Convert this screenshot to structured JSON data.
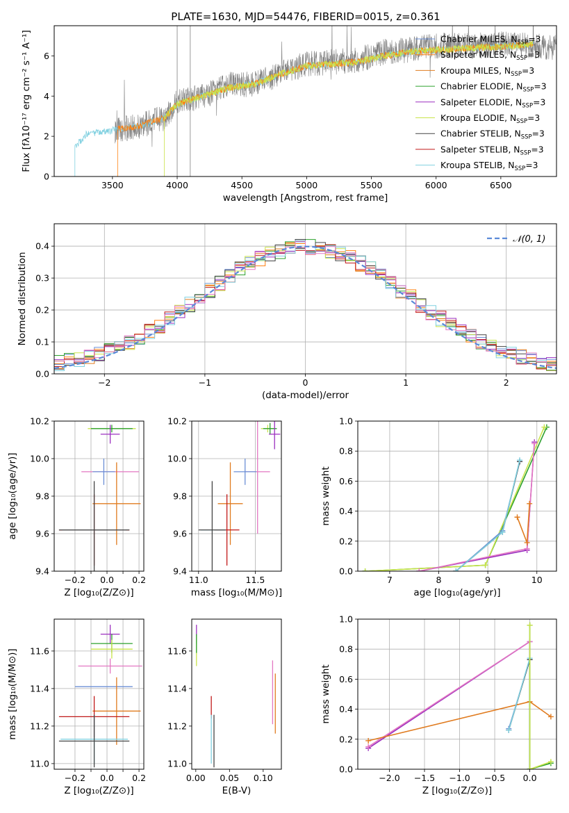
{
  "figure_title": "PLATE=1630, MJD=54476, FIBERID=0015, z=0.361",
  "colors": {
    "Chabrier MILES": "#6b8fd6",
    "Salpeter MILES": "#ff7f0e",
    "Kroupa MILES": "#e07b1f",
    "Chabrier ELODIE": "#2ca02c",
    "Salpeter ELODIE": "#9b2fbf",
    "Kroupa ELODIE": "#c9e34a",
    "Chabrier STELIB": "#444444",
    "Salpeter STELIB": "#c01818",
    "Kroupa STELIB": "#80d0e0",
    "pink": "#e377c2",
    "gray": "#7f7f7f"
  },
  "chart_data": [
    {
      "type": "line",
      "panel": "spectrum",
      "title": "PLATE=1630, MJD=54476, FIBERID=0015, z=0.361",
      "xlabel": "wavelength [Angstrom, rest frame]",
      "ylabel": "Flux [fλ10⁻¹⁷ erg cm⁻² s⁻¹ A⁻¹]",
      "xlim": [
        3050,
        6930
      ],
      "ylim": [
        0,
        7.5
      ],
      "xticks": [
        3500,
        4000,
        4500,
        5000,
        5500,
        6000,
        6500
      ],
      "yticks": [
        0,
        2,
        4,
        6
      ],
      "legend_position": "right",
      "legend": [
        {
          "label": "Chabrier MILES, N",
          "sub": "SSP",
          "tail": "=3",
          "color": "#6b8fd6"
        },
        {
          "label": "Salpeter MILES, N",
          "sub": "SSP",
          "tail": "=3",
          "color": "#ff7f0e"
        },
        {
          "label": "Kroupa MILES, N",
          "sub": "SSP",
          "tail": "=3",
          "color": "#e07b1f"
        },
        {
          "label": "Chabrier ELODIE, N",
          "sub": "SSP",
          "tail": "=3",
          "color": "#2ca02c"
        },
        {
          "label": "Salpeter ELODIE, N",
          "sub": "SSP",
          "tail": "=3",
          "color": "#9b2fbf"
        },
        {
          "label": "Kroupa ELODIE, N",
          "sub": "SSP",
          "tail": "=3",
          "color": "#c9e34a"
        },
        {
          "label": "Chabrier STELIB, N",
          "sub": "SSP",
          "tail": "=3",
          "color": "#444444"
        },
        {
          "label": "Salpeter STELIB, N",
          "sub": "SSP",
          "tail": "=3",
          "color": "#c01818"
        },
        {
          "label": "Kroupa STELIB, N",
          "sub": "SSP",
          "tail": "=3",
          "color": "#80d0e0"
        }
      ],
      "data_curve": {
        "color": "#7f7f7f",
        "start": 3520,
        "end": 6930,
        "knots": [
          [
            3520,
            2.3
          ],
          [
            3700,
            2.5
          ],
          [
            3900,
            2.9
          ],
          [
            4000,
            3.7
          ],
          [
            4200,
            4.0
          ],
          [
            4400,
            4.6
          ],
          [
            4600,
            4.6
          ],
          [
            4800,
            5.1
          ],
          [
            5000,
            5.6
          ],
          [
            5200,
            5.7
          ],
          [
            5400,
            5.8
          ],
          [
            5600,
            6.2
          ],
          [
            5800,
            6.3
          ],
          [
            6000,
            6.5
          ],
          [
            6300,
            6.5
          ],
          [
            6600,
            6.6
          ],
          [
            6930,
            6.4
          ]
        ]
      },
      "model_curve": {
        "knots": [
          [
            3220,
            1.55
          ],
          [
            3300,
            2.1
          ],
          [
            3400,
            2.2
          ],
          [
            3500,
            2.3
          ],
          [
            3700,
            2.5
          ],
          [
            3900,
            2.9
          ],
          [
            4000,
            3.6
          ],
          [
            4200,
            4.0
          ],
          [
            4400,
            4.4
          ],
          [
            4600,
            4.6
          ],
          [
            4800,
            5.1
          ],
          [
            5000,
            5.5
          ],
          [
            5200,
            5.6
          ],
          [
            5400,
            5.7
          ],
          [
            5600,
            6.0
          ],
          [
            5800,
            6.2
          ],
          [
            6000,
            6.3
          ],
          [
            6300,
            6.4
          ],
          [
            6600,
            6.5
          ],
          [
            6750,
            6.6
          ]
        ],
        "series": [
          {
            "name": "Kroupa STELIB",
            "start": 3210,
            "end": 6750,
            "color": "#80d0e0"
          },
          {
            "name": "Salpeter MILES",
            "start": 3540,
            "end": 6750,
            "color": "#ff7f0e"
          },
          {
            "name": "Kroupa ELODIE",
            "start": 3900,
            "end": 6750,
            "color": "#c9e34a"
          }
        ]
      }
    },
    {
      "type": "line",
      "panel": "residuals",
      "xlabel": "(data-model)/error",
      "ylabel": "Normed distribution",
      "xlim": [
        -2.5,
        2.5
      ],
      "ylim": [
        0,
        0.47
      ],
      "xticks": [
        -2,
        -1,
        0,
        1,
        2
      ],
      "yticks": [
        0.0,
        0.1,
        0.2,
        0.3,
        0.4
      ],
      "grid": true,
      "legend_position": "top-right",
      "legend": [
        {
          "label": "𝒩(0, 1)",
          "color": "#5b8ad8",
          "dashed": true
        }
      ],
      "bin_edges_step": 0.1,
      "series_colors": [
        "#6b8fd6",
        "#ff7f0e",
        "#e07b1f",
        "#2ca02c",
        "#9b2fbf",
        "#c9e34a",
        "#444444",
        "#c01818",
        "#80d0e0",
        "#e377c2"
      ]
    },
    {
      "type": "scatter",
      "panel": "age-vs-Z",
      "xlabel": "Z [log₁₀(Z/Z⊙)]",
      "ylabel": "age  [log₁₀(age/yr)]",
      "xlim": [
        -0.33,
        0.23
      ],
      "ylim": [
        9.4,
        10.2
      ],
      "xticks": [
        -0.2,
        -0.1,
        0.0,
        0.1,
        0.2
      ],
      "xticklabels": [
        "−0.2",
        "",
        "0.0",
        "",
        "0.2"
      ],
      "yticks": [
        9.4,
        9.6,
        9.8,
        10.0,
        10.2
      ],
      "grid": true,
      "points": [
        {
          "x": 0.03,
          "y": 10.16,
          "xerr": 0.15,
          "yerr": 0.0,
          "color": "#c9e34a"
        },
        {
          "x": 0.03,
          "y": 10.16,
          "xerr": 0.13,
          "yerr": 0.02,
          "color": "#2ca02c"
        },
        {
          "x": 0.02,
          "y": 10.13,
          "xerr": 0.06,
          "yerr": 0.05,
          "color": "#9b2fbf"
        },
        {
          "x": 0.02,
          "y": 9.93,
          "xerr": 0.18,
          "yerr": 0.0,
          "color": "#e377c2"
        },
        {
          "x": -0.02,
          "y": 9.93,
          "xerr": 0.07,
          "yerr": 0.07,
          "color": "#6b8fd6"
        },
        {
          "x": 0.06,
          "y": 9.76,
          "xerr": 0.15,
          "yerr": 0.22,
          "color": "#e07b1f"
        },
        {
          "x": -0.08,
          "y": 9.62,
          "xerr": 0.22,
          "yerr": 0.19,
          "color": "#c01818"
        },
        {
          "x": -0.08,
          "y": 9.62,
          "xerr": 0.2,
          "yerr": 0.0,
          "color": "#80d0e0"
        },
        {
          "x": -0.08,
          "y": 9.62,
          "xerr": 0.22,
          "yerr": 0.26,
          "color": "#444444"
        }
      ]
    },
    {
      "type": "scatter",
      "panel": "age-vs-mass",
      "xlabel": "mass [log₁₀(M/M⊙)]",
      "ylabel": "",
      "xlim": [
        10.94,
        11.73
      ],
      "ylim": [
        9.4,
        10.2
      ],
      "xticks": [
        11.0,
        11.5
      ],
      "yticks": [
        9.4,
        9.6,
        9.8,
        10.0,
        10.2
      ],
      "grid": true,
      "points": [
        {
          "x": 11.61,
          "y": 10.16,
          "xerr": 0.06,
          "yerr": 0.02,
          "color": "#c9e34a"
        },
        {
          "x": 11.63,
          "y": 10.16,
          "xerr": 0.06,
          "yerr": 0.03,
          "color": "#2ca02c"
        },
        {
          "x": 11.67,
          "y": 10.13,
          "xerr": 0.05,
          "yerr": 0.08,
          "color": "#9b2fbf"
        },
        {
          "x": 11.52,
          "y": 9.93,
          "xerr": 0.11,
          "yerr": 0.33,
          "color": "#e377c2"
        },
        {
          "x": 11.41,
          "y": 9.93,
          "xerr": 0.1,
          "yerr": 0.07,
          "color": "#6b8fd6"
        },
        {
          "x": 11.28,
          "y": 9.76,
          "xerr": 0.11,
          "yerr": 0.22,
          "color": "#e07b1f"
        },
        {
          "x": 11.25,
          "y": 9.62,
          "xerr": 0.11,
          "yerr": 0.19,
          "color": "#c01818"
        },
        {
          "x": 11.13,
          "y": 9.62,
          "xerr": 0.11,
          "yerr": 0.0,
          "color": "#80d0e0"
        },
        {
          "x": 11.12,
          "y": 9.62,
          "xerr": 0.12,
          "yerr": 0.26,
          "color": "#444444"
        }
      ]
    },
    {
      "type": "line",
      "panel": "massweight-vs-age",
      "xlabel": "age  [log₁₀(age/yr)]",
      "ylabel": "mass weight",
      "xlim": [
        6.35,
        10.4
      ],
      "ylim": [
        0,
        1.0
      ],
      "xticks": [
        7,
        8,
        9,
        10
      ],
      "yticks": [
        0.0,
        0.2,
        0.4,
        0.6,
        0.8,
        1.0
      ],
      "grid": true,
      "series": [
        {
          "name": "Chabrier ELODIE",
          "color": "#2ca02c",
          "x": [
            6.5,
            8.95,
            10.2
          ],
          "y": [
            0.0,
            0.04,
            0.96
          ]
        },
        {
          "name": "Kroupa ELODIE",
          "color": "#c9e34a",
          "x": [
            6.5,
            8.95,
            10.15
          ],
          "y": [
            0.0,
            0.04,
            0.96
          ]
        },
        {
          "name": "Salpeter ELODIE",
          "color": "#9b2fbf",
          "x": [
            7.6,
            9.8,
            9.95
          ],
          "y": [
            0.0,
            0.14,
            0.86
          ]
        },
        {
          "name": "pink",
          "color": "#e377c2",
          "x": [
            7.6,
            9.8,
            9.95
          ],
          "y": [
            0.0,
            0.15,
            0.85
          ]
        },
        {
          "name": "Kroupa MILES",
          "color": "#e07b1f",
          "x": [
            9.6,
            9.8,
            9.85
          ],
          "y": [
            0.36,
            0.19,
            0.45
          ]
        },
        {
          "name": "Chabrier MILES",
          "color": "#6b8fd6",
          "x": [
            8.35,
            9.3,
            9.65
          ],
          "y": [
            0.0,
            0.27,
            0.73
          ]
        },
        {
          "name": "Chabrier STELIB",
          "color": "#444444",
          "x": [
            8.35,
            9.3,
            9.65
          ],
          "y": [
            0.0,
            0.26,
            0.73
          ]
        },
        {
          "name": "Kroupa STELIB",
          "color": "#80d0e0",
          "x": [
            8.35,
            9.3,
            9.65
          ],
          "y": [
            0.0,
            0.26,
            0.74
          ]
        }
      ]
    },
    {
      "type": "scatter",
      "panel": "mass-vs-Z",
      "xlabel": "Z [log₁₀(Z/Z⊙)]",
      "ylabel": "mass [log₁₀(M/M⊙)]",
      "xlim": [
        -0.33,
        0.23
      ],
      "ylim": [
        10.97,
        11.77
      ],
      "xticks": [
        -0.2,
        -0.1,
        0.0,
        0.1,
        0.2
      ],
      "xticklabels": [
        "−0.2",
        "",
        "0.0",
        "",
        "0.2"
      ],
      "yticks": [
        11.0,
        11.2,
        11.4,
        11.6
      ],
      "grid": true,
      "points": [
        {
          "x": 0.02,
          "y": 11.69,
          "xerr": 0.06,
          "yerr": 0.05,
          "color": "#9b2fbf"
        },
        {
          "x": 0.03,
          "y": 11.64,
          "xerr": 0.13,
          "yerr": 0.05,
          "color": "#2ca02c"
        },
        {
          "x": 0.03,
          "y": 11.61,
          "xerr": 0.13,
          "yerr": 0.05,
          "color": "#c9e34a"
        },
        {
          "x": 0.02,
          "y": 11.52,
          "xerr": 0.2,
          "yerr": 0.04,
          "color": "#e377c2"
        },
        {
          "x": -0.02,
          "y": 11.41,
          "xerr": 0.18,
          "yerr": 0.0,
          "color": "#6b8fd6"
        },
        {
          "x": 0.06,
          "y": 11.28,
          "xerr": 0.15,
          "yerr": 0.18,
          "color": "#e07b1f"
        },
        {
          "x": -0.08,
          "y": 11.25,
          "xerr": 0.22,
          "yerr": 0.11,
          "color": "#c01818"
        },
        {
          "x": -0.08,
          "y": 11.13,
          "xerr": 0.21,
          "yerr": 0.13,
          "color": "#80d0e0"
        },
        {
          "x": -0.08,
          "y": 11.12,
          "xerr": 0.22,
          "yerr": 0.14,
          "color": "#444444"
        }
      ]
    },
    {
      "type": "scatter",
      "panel": "mass-vs-EBV",
      "xlabel": "E(B-V)",
      "ylabel": "",
      "xlim": [
        -0.006,
        0.127
      ],
      "ylim": [
        10.97,
        11.77
      ],
      "xticks": [
        0.0,
        0.05,
        0.1
      ],
      "xticklabels": [
        "0.00",
        "0.05",
        "0.10"
      ],
      "yticks": [
        11.0,
        11.2,
        11.4,
        11.6
      ],
      "points": [
        {
          "x": 0.001,
          "y": 11.69,
          "xerr": 0,
          "yerr": 0.05,
          "color": "#9b2fbf"
        },
        {
          "x": 0.001,
          "y": 11.6,
          "xerr": 0,
          "yerr": 0.08,
          "color": "#c9e34a"
        },
        {
          "x": 0.001,
          "y": 11.64,
          "xerr": 0,
          "yerr": 0.05,
          "color": "#2ca02c"
        },
        {
          "x": 0.023,
          "y": 11.3,
          "xerr": 0,
          "yerr": 0.06,
          "color": "#c01818"
        },
        {
          "x": 0.023,
          "y": 11.13,
          "xerr": 0,
          "yerr": 0.13,
          "color": "#80d0e0"
        },
        {
          "x": 0.027,
          "y": 11.12,
          "xerr": 0,
          "yerr": 0.14,
          "color": "#444444"
        },
        {
          "x": 0.114,
          "y": 11.38,
          "xerr": 0,
          "yerr": 0.17,
          "color": "#e377c2"
        },
        {
          "x": 0.118,
          "y": 11.32,
          "xerr": 0,
          "yerr": 0.16,
          "color": "#e07b1f"
        }
      ]
    },
    {
      "type": "line",
      "panel": "massweight-vs-Z",
      "xlabel": "Z [log₁₀(Z/Z⊙)]",
      "ylabel": "mass weight",
      "xlim": [
        -2.45,
        0.38
      ],
      "ylim": [
        0,
        1.0
      ],
      "xticks": [
        -2.0,
        -1.5,
        -1.0,
        -0.5,
        0.0
      ],
      "xticklabels": [
        "−2.0",
        "−1.5",
        "−1.0",
        "−0.5",
        "0.0"
      ],
      "yticks": [
        0.0,
        0.2,
        0.4,
        0.6,
        0.8,
        1.0
      ],
      "grid": true,
      "series": [
        {
          "name": "Salpeter ELODIE",
          "color": "#9b2fbf",
          "x": [
            -2.3,
            0.0,
            0.0
          ],
          "y": [
            0.14,
            0.85,
            0.0
          ]
        },
        {
          "name": "pink",
          "color": "#e377c2",
          "x": [
            -2.3,
            0.0
          ],
          "y": [
            0.15,
            0.85
          ]
        },
        {
          "name": "Kroupa MILES",
          "color": "#e07b1f",
          "x": [
            -2.3,
            0.0,
            0.3
          ],
          "y": [
            0.19,
            0.45,
            0.35
          ]
        },
        {
          "name": "Chabrier MILES",
          "color": "#6b8fd6",
          "x": [
            -0.3,
            0.0,
            0.0
          ],
          "y": [
            0.27,
            0.73,
            0.0
          ]
        },
        {
          "name": "Chabrier STELIB",
          "color": "#444444",
          "x": [
            -0.3,
            0.0,
            0.0
          ],
          "y": [
            0.26,
            0.73,
            0.0
          ]
        },
        {
          "name": "Kroupa STELIB",
          "color": "#80d0e0",
          "x": [
            -0.3,
            0.0,
            0.0
          ],
          "y": [
            0.26,
            0.74,
            0.0
          ]
        },
        {
          "name": "Chabrier ELODIE",
          "color": "#2ca02c",
          "x": [
            0.0,
            0.0,
            0.3
          ],
          "y": [
            0.96,
            0.0,
            0.04
          ]
        },
        {
          "name": "Kroupa ELODIE",
          "color": "#c9e34a",
          "x": [
            0.0,
            0.0,
            0.3
          ],
          "y": [
            0.96,
            0.0,
            0.05
          ]
        }
      ]
    }
  ]
}
